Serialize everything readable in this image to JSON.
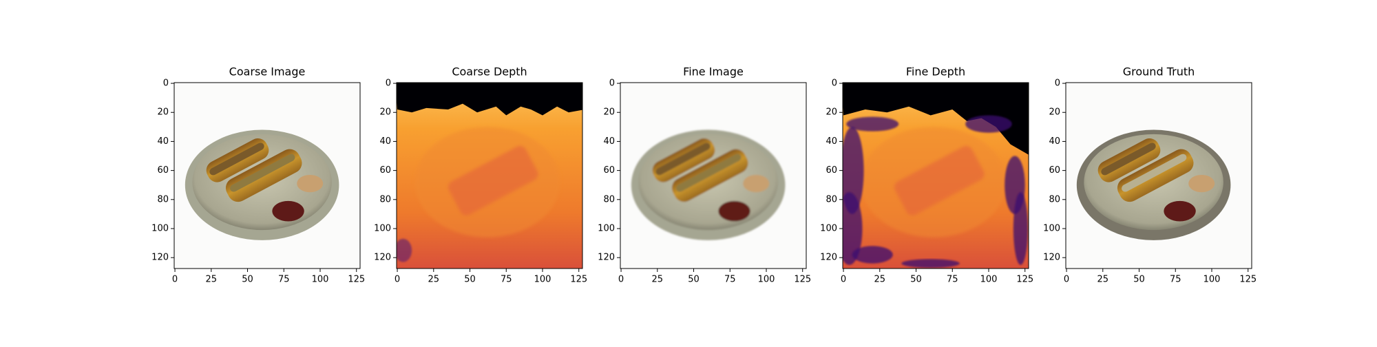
{
  "chart_data": [
    {
      "type": "image",
      "title": "Coarse Image",
      "xlim": [
        -0.5,
        127.5
      ],
      "ylim": [
        127.5,
        -0.5
      ],
      "xticks": [
        0,
        25,
        50,
        75,
        100,
        125
      ],
      "yticks": [
        0,
        20,
        40,
        60,
        80,
        100,
        120
      ]
    },
    {
      "type": "image",
      "title": "Coarse Depth",
      "cmap": "inferno",
      "xlim": [
        -0.5,
        127.5
      ],
      "ylim": [
        127.5,
        -0.5
      ],
      "xticks": [
        0,
        25,
        50,
        75,
        100,
        125
      ],
      "yticks": [
        0,
        20,
        40,
        60,
        80,
        100,
        120
      ]
    },
    {
      "type": "image",
      "title": "Fine Image",
      "xlim": [
        -0.5,
        127.5
      ],
      "ylim": [
        127.5,
        -0.5
      ],
      "xticks": [
        0,
        25,
        50,
        75,
        100,
        125
      ],
      "yticks": [
        0,
        20,
        40,
        60,
        80,
        100,
        120
      ]
    },
    {
      "type": "image",
      "title": "Fine Depth",
      "cmap": "inferno",
      "xlim": [
        -0.5,
        127.5
      ],
      "ylim": [
        127.5,
        -0.5
      ],
      "xticks": [
        0,
        25,
        50,
        75,
        100,
        125
      ],
      "yticks": [
        0,
        20,
        40,
        60,
        80,
        100,
        120
      ]
    },
    {
      "type": "image",
      "title": "Ground Truth",
      "xlim": [
        -0.5,
        127.5
      ],
      "ylim": [
        127.5,
        -0.5
      ],
      "xticks": [
        0,
        25,
        50,
        75,
        100,
        125
      ],
      "yticks": [
        0,
        20,
        40,
        60,
        80,
        100,
        120
      ]
    }
  ]
}
